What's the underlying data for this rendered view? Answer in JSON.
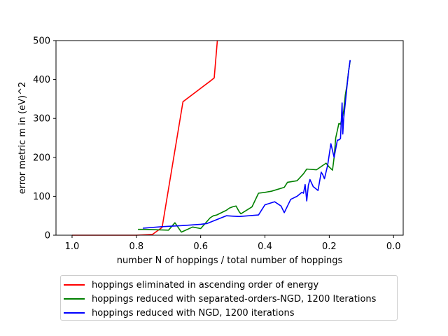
{
  "chart_data": {
    "type": "line",
    "xlabel": "number N of hoppings / total number of hoppings",
    "ylabel": "error metric m in (eV)^2",
    "xlim": [
      1.05,
      -0.03
    ],
    "ylim": [
      0,
      500
    ],
    "x_inverted": true,
    "grid": false,
    "legend_placement": "below",
    "xticks": [
      1.0,
      0.8,
      0.6,
      0.4,
      0.2,
      0.0
    ],
    "xtick_labels": [
      "1.0",
      "0.8",
      "0.6",
      "0.4",
      "0.2",
      "0.0"
    ],
    "yticks": [
      0,
      100,
      200,
      300,
      400,
      500
    ],
    "ytick_labels": [
      "0",
      "100",
      "200",
      "300",
      "400",
      "500"
    ],
    "series": [
      {
        "name": "hoppings eliminated in ascending order of energy",
        "color": "#ff0000",
        "x": [
          1.0,
          0.9,
          0.8,
          0.75,
          0.72,
          0.655,
          0.58,
          0.57,
          0.558,
          0.548
        ],
        "y": [
          0,
          0,
          0,
          2,
          20,
          343,
          390,
          396,
          404,
          500
        ]
      },
      {
        "name": "hoppings reduced with separated-orders-NGD, 1200 Iterations",
        "color": "#008000",
        "x": [
          0.795,
          0.77,
          0.74,
          0.7,
          0.68,
          0.66,
          0.625,
          0.6,
          0.57,
          0.56,
          0.55,
          0.52,
          0.51,
          0.5,
          0.49,
          0.48,
          0.475,
          0.44,
          0.42,
          0.4,
          0.38,
          0.34,
          0.33,
          0.3,
          0.28,
          0.27,
          0.24,
          0.21,
          0.2,
          0.19,
          0.185,
          0.18,
          0.17,
          0.165,
          0.16,
          0.155,
          0.15,
          0.145,
          0.14,
          0.135
        ],
        "y": [
          15,
          15,
          14,
          13,
          32,
          8,
          21,
          17,
          45,
          50,
          52,
          64,
          70,
          73,
          75,
          60,
          55,
          73,
          108,
          110,
          113,
          123,
          136,
          140,
          158,
          170,
          168,
          185,
          175,
          167,
          200,
          250,
          287,
          285,
          300,
          320,
          360,
          385,
          420,
          448
        ]
      },
      {
        "name": "hoppings reduced with NGD, 1200 iterations",
        "color": "#0000ff",
        "x": [
          0.78,
          0.72,
          0.65,
          0.6,
          0.58,
          0.55,
          0.52,
          0.5,
          0.48,
          0.45,
          0.42,
          0.4,
          0.37,
          0.35,
          0.34,
          0.32,
          0.3,
          0.285,
          0.28,
          0.275,
          0.27,
          0.265,
          0.26,
          0.25,
          0.235,
          0.225,
          0.22,
          0.215,
          0.205,
          0.195,
          0.185,
          0.175,
          0.17,
          0.165,
          0.16,
          0.158,
          0.155,
          0.15,
          0.145,
          0.14,
          0.135
        ],
        "y": [
          18,
          22,
          25,
          28,
          30,
          40,
          50,
          49,
          48,
          50,
          52,
          78,
          86,
          75,
          58,
          92,
          100,
          110,
          108,
          130,
          88,
          128,
          143,
          125,
          115,
          162,
          155,
          145,
          180,
          235,
          200,
          244,
          245,
          248,
          340,
          260,
          300,
          340,
          380,
          420,
          450
        ]
      }
    ]
  }
}
